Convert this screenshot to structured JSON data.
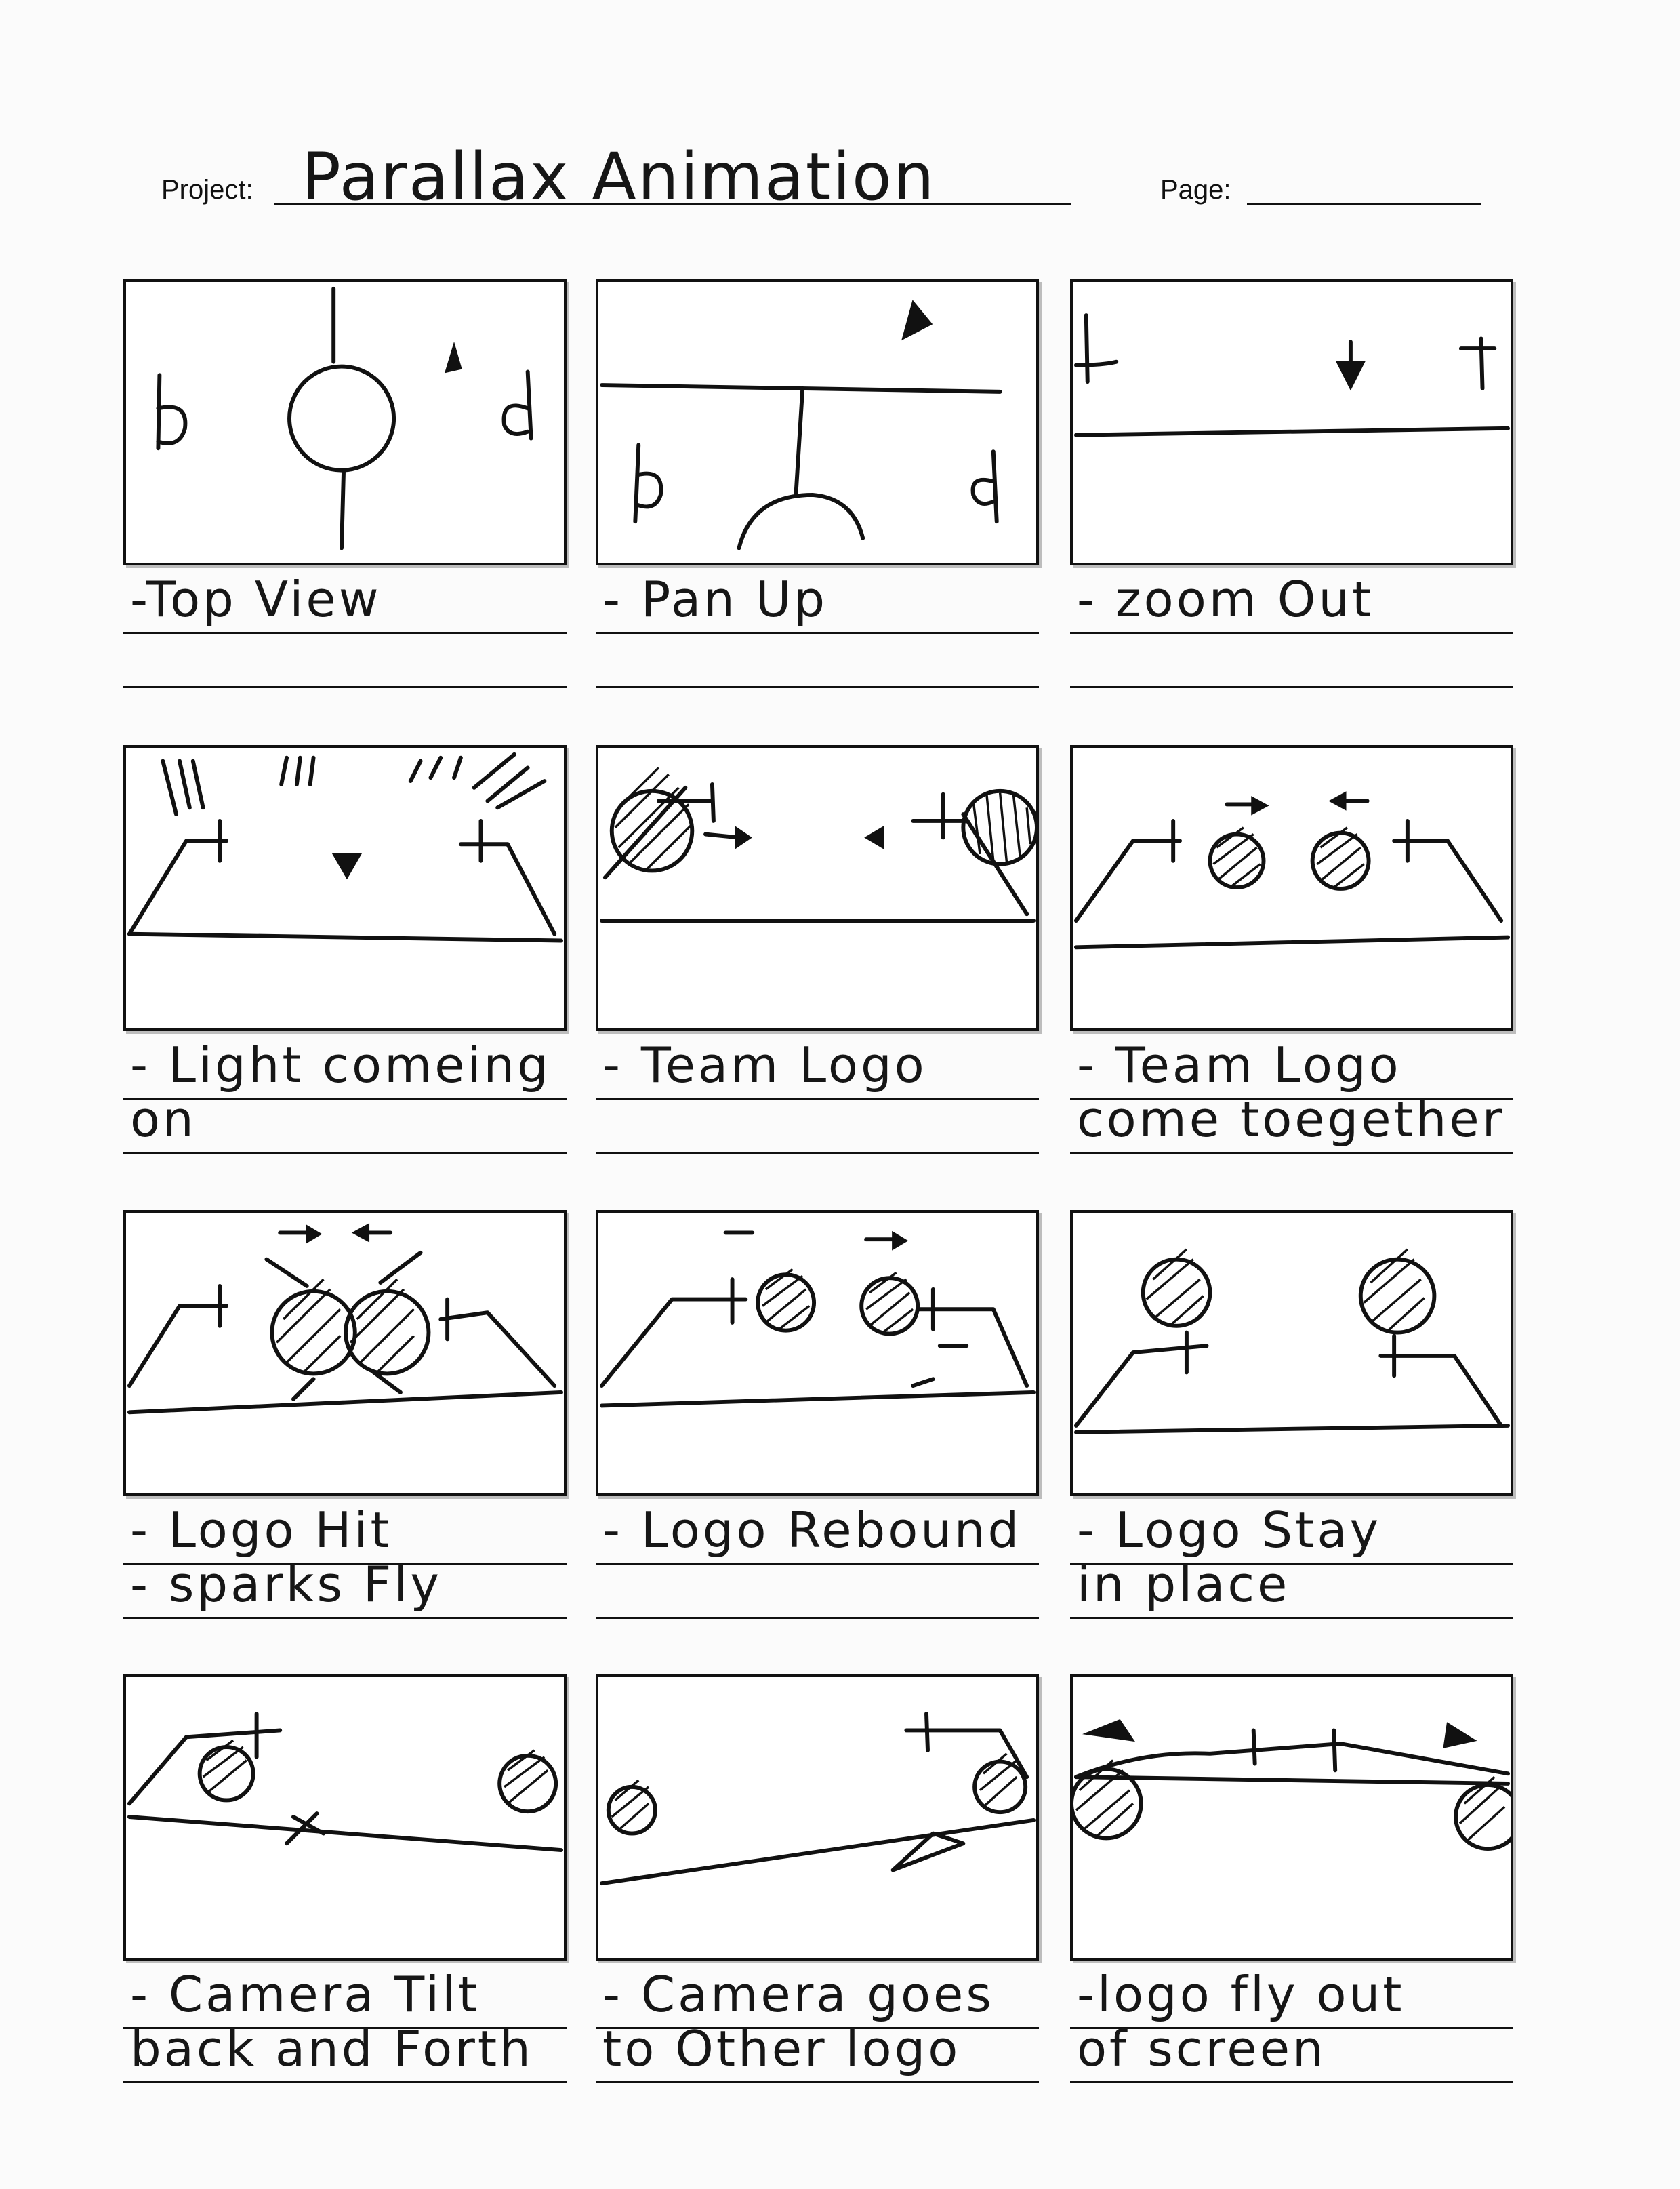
{
  "header": {
    "project_label": "Project:",
    "project_value": "Parallax Animation",
    "page_label": "Page:",
    "page_value": ""
  },
  "panels": [
    {
      "line1": "-Top View",
      "line2": ""
    },
    {
      "line1": "- Pan Up",
      "line2": ""
    },
    {
      "line1": "- zoom Out",
      "line2": ""
    },
    {
      "line1": "- Light comeing",
      "line2": "on"
    },
    {
      "line1": "- Team Logo",
      "line2": ""
    },
    {
      "line1": "- Team Logo",
      "line2": "come toegether"
    },
    {
      "line1": "- Logo Hit",
      "line2": "- sparks Fly"
    },
    {
      "line1": "- Logo Rebound",
      "line2": ""
    },
    {
      "line1": "- Logo Stay",
      "line2": "in place"
    },
    {
      "line1": "- Camera Tilt",
      "line2": "back and Forth"
    },
    {
      "line1": "- Camera goes",
      "line2": "to Other logo"
    },
    {
      "line1": "-logo fly out",
      "line2": "of screen"
    }
  ]
}
